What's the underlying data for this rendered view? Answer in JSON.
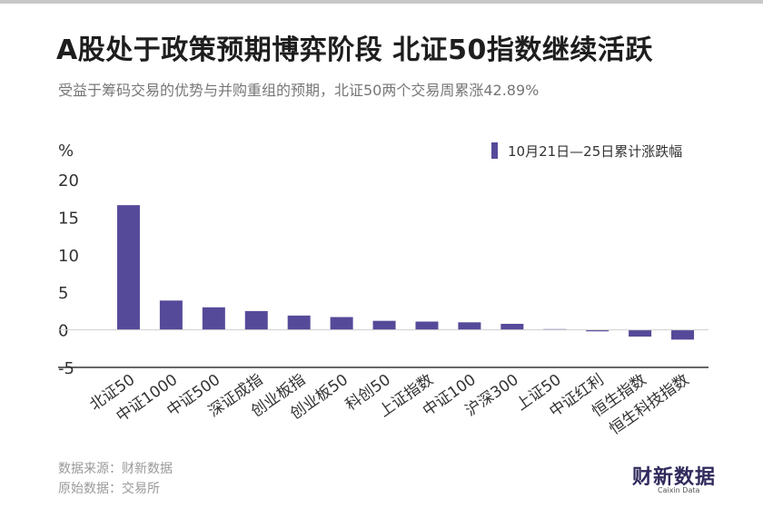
{
  "header": {
    "title": "A股处于政策预期博弈阶段  北证50指数继续活跃",
    "subtitle": "受益于筹码交易的优势与并购重组的预期，北证50两个交易周累涨42.89%"
  },
  "footer": {
    "source": "数据来源：财新数据",
    "origin": "原始数据：交易所"
  },
  "logo": {
    "main": "财新数据",
    "sub": "Caixin Data"
  },
  "colors": {
    "bar": "#554a99",
    "axis": "#333333",
    "text": "#333333"
  },
  "chart_data": {
    "type": "bar",
    "ylabel": "%",
    "ylim": [
      -5,
      20
    ],
    "yticks": [
      -5,
      0,
      5,
      10,
      15,
      20
    ],
    "legend": {
      "label": "10月21日—25日累计涨跌幅",
      "position": "top-right"
    },
    "categories": [
      "北证50",
      "中证1000",
      "中证500",
      "深证成指",
      "创业板指",
      "创业板50",
      "科创50",
      "上证指数",
      "中证100",
      "沪深300",
      "上证50",
      "中证红利",
      "恒生指数",
      "恒生科技指数"
    ],
    "series": [
      {
        "name": "10月21日—25日累计涨跌幅",
        "values": [
          16.6,
          3.9,
          3.0,
          2.5,
          1.9,
          1.7,
          1.2,
          1.1,
          1.0,
          0.8,
          0.1,
          -0.2,
          -0.9,
          -1.3
        ]
      }
    ]
  }
}
